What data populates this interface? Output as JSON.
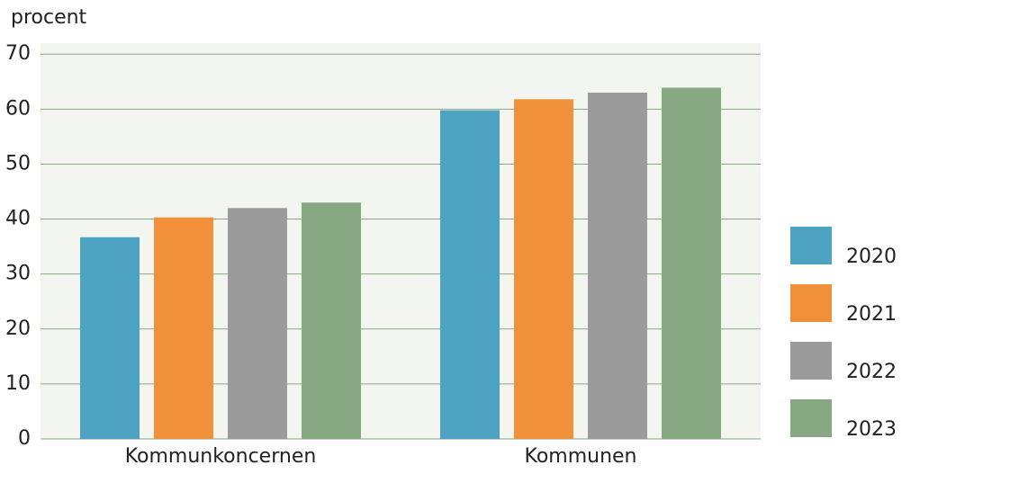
{
  "chart_data": {
    "type": "bar",
    "y_label": "procent",
    "categories": [
      "Kommunkoncernen",
      "Kommunen"
    ],
    "series": [
      {
        "name": "2020",
        "color": "#4fa3c2",
        "values": [
          36.7,
          59.8
        ]
      },
      {
        "name": "2021",
        "color": "#f0913a",
        "values": [
          40.3,
          61.8
        ]
      },
      {
        "name": "2022",
        "color": "#9b9b9b",
        "values": [
          42.0,
          63.0
        ]
      },
      {
        "name": "2023",
        "color": "#87a883",
        "values": [
          43.0,
          63.9
        ]
      }
    ],
    "ylim": [
      0,
      72
    ],
    "yticks": [
      0,
      10,
      20,
      30,
      40,
      50,
      60,
      70
    ],
    "grid": true,
    "legend": "right"
  }
}
